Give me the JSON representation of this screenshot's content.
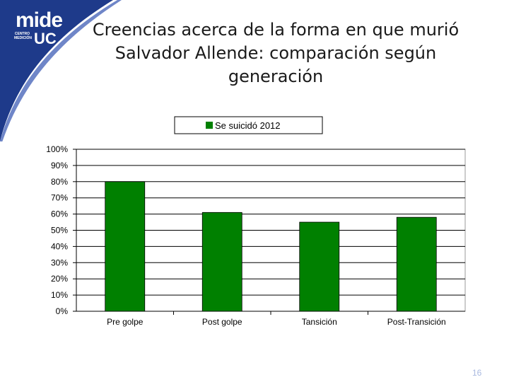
{
  "slide": {
    "title": "Creencias acerca de la forma en que murió Salvador Allende: comparación según generación",
    "page_number": "16"
  },
  "logo": {
    "mide": "mide",
    "centro": "CENTRO MEDICIÓN",
    "uc": "UC"
  },
  "colors": {
    "bar": "#008000",
    "frame": "#9a9a9a",
    "grid": "#000000",
    "corner": "#1e3a8a"
  },
  "chart_data": {
    "type": "bar",
    "categories": [
      "Pre golpe",
      "Post golpe",
      "Tansición",
      "Post-Transición"
    ],
    "series": [
      {
        "name": "Se suicidó 2012",
        "values": [
          80,
          61,
          55,
          58
        ]
      }
    ],
    "yticks": [
      "0%",
      "10%",
      "20%",
      "30%",
      "40%",
      "50%",
      "60%",
      "70%",
      "80%",
      "90%",
      "100%"
    ],
    "ylim": [
      0,
      100
    ],
    "legend": "top-center",
    "grid": true
  }
}
